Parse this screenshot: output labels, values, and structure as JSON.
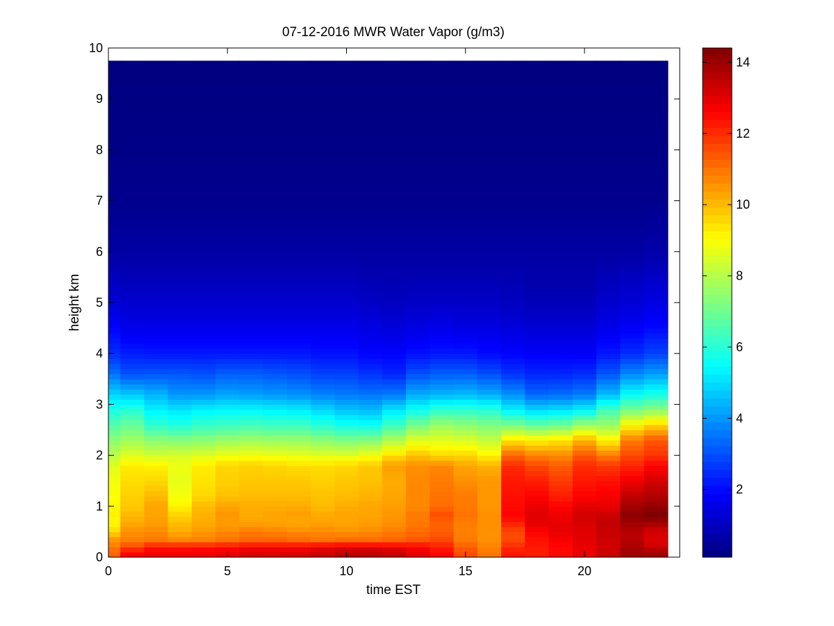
{
  "chart_data": {
    "type": "heatmap",
    "title": "07-12-2016 MWR Water Vapor (g/m3)",
    "xlabel": "time EST",
    "ylabel": "height km",
    "xlim": [
      0,
      24
    ],
    "ylim": [
      0,
      10
    ],
    "x_ticks": [
      0,
      5,
      10,
      15,
      20
    ],
    "y_ticks": [
      0,
      1,
      2,
      3,
      4,
      5,
      6,
      7,
      8,
      9,
      10
    ],
    "x_tick_labels": [
      "0",
      "5",
      "10",
      "15",
      "20"
    ],
    "y_tick_labels": [
      "0",
      "1",
      "2",
      "3",
      "4",
      "5",
      "6",
      "7",
      "8",
      "9",
      "10"
    ],
    "colormap": "jet",
    "color_range": [
      0.1,
      14.4
    ],
    "colorbar_ticks": [
      2,
      4,
      6,
      8,
      10,
      12,
      14
    ],
    "colorbar_tick_labels": [
      "2",
      "4",
      "6",
      "8",
      "10",
      "12",
      "14"
    ],
    "time_start": 0,
    "time_end": 23.5,
    "time_bin_width": 1,
    "height_top": 9.75,
    "profile_heights": [
      0,
      0.1,
      0.2,
      0.35,
      0.5,
      0.6,
      0.7,
      0.85,
      1.0,
      1.2,
      1.5,
      1.8,
      2.0,
      2.3,
      2.6,
      2.9,
      3.2,
      3.6,
      4.0,
      4.5,
      5.0,
      5.5,
      6.0,
      7.0,
      8.0,
      9.75
    ],
    "profiles": [
      {
        "time": 0,
        "values": [
          11.2,
          11.2,
          10.9,
          10.5,
          9.6,
          9.3,
          9.1,
          9.2,
          9.1,
          9.0,
          8.9,
          8.6,
          8.1,
          7.4,
          6.6,
          5.8,
          4.9,
          3.5,
          2.5,
          1.9,
          1.3,
          1.0,
          0.6,
          0.3,
          0.2,
          0.1
        ]
      },
      {
        "time": 1,
        "values": [
          12.6,
          12.5,
          11.6,
          10.8,
          10.6,
          10.4,
          10.2,
          10.0,
          9.8,
          9.7,
          9.5,
          9.3,
          8.6,
          7.7,
          6.9,
          6.0,
          4.7,
          3.0,
          2.3,
          1.6,
          1.2,
          0.9,
          0.6,
          0.3,
          0.2,
          0.1
        ]
      },
      {
        "time": 2,
        "values": [
          12.8,
          12.7,
          12.3,
          10.9,
          10.7,
          10.5,
          10.4,
          10.3,
          10.3,
          10.0,
          9.6,
          9.2,
          8.4,
          7.4,
          6.1,
          5.3,
          4.4,
          3.1,
          2.2,
          1.6,
          1.2,
          0.9,
          0.6,
          0.3,
          0.2,
          0.1
        ]
      },
      {
        "time": 3,
        "values": [
          12.8,
          12.7,
          12.3,
          10.7,
          10.2,
          10.1,
          9.9,
          9.6,
          9.2,
          8.9,
          8.7,
          8.8,
          8.5,
          7.3,
          5.9,
          5.1,
          4.0,
          3.1,
          2.2,
          1.6,
          1.2,
          0.9,
          0.6,
          0.3,
          0.2,
          0.1
        ]
      },
      {
        "time": 4,
        "values": [
          12.9,
          12.8,
          12.3,
          10.8,
          10.5,
          10.3,
          10.2,
          10.1,
          10.0,
          9.6,
          9.4,
          9.3,
          8.6,
          7.4,
          6.2,
          5.3,
          4.0,
          3.0,
          2.2,
          1.6,
          1.2,
          0.9,
          0.6,
          0.3,
          0.2,
          0.1
        ]
      },
      {
        "time": 5,
        "values": [
          13.0,
          12.9,
          12.4,
          11.0,
          10.7,
          10.5,
          10.4,
          10.5,
          10.3,
          9.9,
          9.7,
          9.6,
          8.8,
          7.6,
          6.3,
          5.4,
          4.2,
          3.2,
          2.2,
          1.6,
          1.2,
          0.9,
          0.6,
          0.3,
          0.2,
          0.1
        ]
      },
      {
        "time": 6,
        "values": [
          13.2,
          13.1,
          12.6,
          11.2,
          10.9,
          10.6,
          10.3,
          10.2,
          10.2,
          10.0,
          9.8,
          9.7,
          8.9,
          7.7,
          6.4,
          5.4,
          4.1,
          3.2,
          2.2,
          1.6,
          1.2,
          0.9,
          0.6,
          0.3,
          0.2,
          0.1
        ]
      },
      {
        "time": 7,
        "values": [
          13.2,
          13.1,
          12.6,
          11.2,
          10.8,
          10.5,
          10.3,
          10.3,
          10.2,
          10.0,
          9.8,
          9.6,
          8.8,
          7.6,
          6.3,
          5.3,
          4.0,
          3.1,
          2.2,
          1.6,
          1.2,
          0.9,
          0.6,
          0.3,
          0.2,
          0.1
        ]
      },
      {
        "time": 8,
        "values": [
          13.2,
          13.1,
          12.6,
          11.1,
          10.7,
          10.4,
          10.3,
          10.4,
          10.2,
          10.0,
          9.8,
          9.5,
          8.7,
          7.6,
          6.3,
          5.2,
          3.9,
          3.0,
          2.2,
          1.6,
          1.2,
          0.9,
          0.6,
          0.3,
          0.2,
          0.1
        ]
      },
      {
        "time": 9,
        "values": [
          13.4,
          13.3,
          12.8,
          11.0,
          10.7,
          10.5,
          10.3,
          10.2,
          10.0,
          9.9,
          9.7,
          9.5,
          8.6,
          7.4,
          6.0,
          4.9,
          3.7,
          2.8,
          2.1,
          1.6,
          1.2,
          0.9,
          0.6,
          0.3,
          0.2,
          0.1
        ]
      },
      {
        "time": 10,
        "values": [
          13.6,
          13.5,
          12.9,
          11.1,
          10.6,
          10.4,
          10.3,
          10.3,
          10.2,
          10.0,
          9.8,
          9.6,
          8.6,
          7.2,
          5.7,
          4.6,
          3.6,
          2.8,
          2.1,
          1.6,
          1.2,
          0.9,
          0.6,
          0.3,
          0.2,
          0.1
        ]
      },
      {
        "time": 11,
        "values": [
          13.6,
          13.5,
          12.9,
          11.1,
          10.7,
          10.5,
          10.4,
          10.3,
          10.3,
          10.1,
          9.9,
          9.8,
          8.9,
          7.3,
          5.6,
          4.5,
          3.5,
          2.6,
          1.9,
          1.5,
          1.1,
          0.8,
          0.6,
          0.3,
          0.2,
          0.1
        ]
      },
      {
        "time": 12,
        "values": [
          13.5,
          13.3,
          12.8,
          11.2,
          10.9,
          10.7,
          10.6,
          10.5,
          10.4,
          10.3,
          10.2,
          10.4,
          9.5,
          7.9,
          6.3,
          5.1,
          3.6,
          2.4,
          1.9,
          1.4,
          1.0,
          0.8,
          0.6,
          0.3,
          0.2,
          0.1
        ]
      },
      {
        "time": 13,
        "values": [
          13.0,
          12.9,
          12.6,
          11.4,
          11.1,
          11.0,
          10.9,
          10.9,
          10.7,
          10.7,
          10.7,
          10.6,
          9.9,
          8.6,
          7.1,
          5.6,
          4.3,
          3.0,
          2.1,
          1.5,
          1.1,
          0.8,
          0.6,
          0.3,
          0.2,
          0.1
        ]
      },
      {
        "time": 14,
        "values": [
          12.6,
          12.5,
          12.2,
          11.6,
          11.3,
          11.2,
          11.3,
          11.5,
          11.1,
          11.0,
          10.9,
          10.7,
          9.6,
          8.6,
          7.6,
          6.1,
          4.4,
          3.2,
          2.2,
          1.6,
          1.1,
          0.8,
          0.6,
          0.3,
          0.2,
          0.1
        ]
      },
      {
        "time": 15,
        "values": [
          11.6,
          11.5,
          11.3,
          10.9,
          10.8,
          10.8,
          10.9,
          11.0,
          10.9,
          10.9,
          10.6,
          10.3,
          9.6,
          8.5,
          7.4,
          6.1,
          4.5,
          3.2,
          2.2,
          1.5,
          1.1,
          0.8,
          0.6,
          0.3,
          0.2,
          0.1
        ]
      },
      {
        "time": 16,
        "values": [
          11.0,
          10.9,
          10.8,
          10.6,
          10.6,
          10.6,
          10.6,
          10.6,
          10.5,
          10.5,
          10.5,
          10.1,
          9.2,
          8.2,
          7.2,
          6.0,
          4.3,
          3.0,
          2.0,
          1.5,
          1.1,
          0.8,
          0.6,
          0.3,
          0.2,
          0.1
        ]
      },
      {
        "time": 17,
        "values": [
          12.3,
          12.3,
          12.0,
          11.6,
          11.6,
          11.9,
          12.3,
          12.6,
          12.5,
          12.4,
          12.3,
          12.0,
          11.2,
          9.4,
          7.1,
          5.3,
          3.9,
          2.6,
          1.9,
          1.4,
          1.0,
          0.8,
          0.6,
          0.3,
          0.2,
          0.1
        ]
      },
      {
        "time": 18,
        "values": [
          12.2,
          12.2,
          12.3,
          12.4,
          12.6,
          12.8,
          13.0,
          13.0,
          12.9,
          12.6,
          12.2,
          11.6,
          10.8,
          9.2,
          6.8,
          4.9,
          3.3,
          2.4,
          1.8,
          1.3,
          0.9,
          0.7,
          0.6,
          0.3,
          0.2,
          0.1
        ]
      },
      {
        "time": 19,
        "values": [
          12.5,
          12.5,
          12.5,
          12.7,
          12.9,
          13.0,
          12.9,
          12.8,
          12.6,
          12.2,
          11.8,
          11.3,
          10.7,
          9.4,
          7.0,
          5.0,
          3.4,
          2.4,
          1.8,
          1.3,
          0.9,
          0.7,
          0.6,
          0.3,
          0.2,
          0.1
        ]
      },
      {
        "time": 20,
        "values": [
          12.9,
          12.9,
          12.9,
          13.0,
          13.0,
          13.1,
          13.2,
          13.2,
          13.0,
          12.6,
          12.3,
          12.0,
          11.4,
          10.1,
          7.6,
          5.3,
          3.6,
          2.5,
          1.8,
          1.3,
          0.9,
          0.7,
          0.6,
          0.3,
          0.2,
          0.1
        ]
      },
      {
        "time": 21,
        "values": [
          13.4,
          13.3,
          13.3,
          13.3,
          13.4,
          13.4,
          13.5,
          13.3,
          12.9,
          12.7,
          12.4,
          11.8,
          10.9,
          9.2,
          7.6,
          6.4,
          4.5,
          3.1,
          2.2,
          1.6,
          1.2,
          0.9,
          0.6,
          0.3,
          0.2,
          0.1
        ]
      },
      {
        "time": 22,
        "values": [
          14.0,
          13.9,
          13.8,
          13.6,
          13.6,
          13.8,
          14.0,
          14.2,
          13.9,
          13.5,
          12.8,
          12.1,
          11.6,
          10.9,
          9.1,
          7.1,
          5.5,
          3.8,
          2.5,
          1.8,
          1.3,
          1.0,
          0.6,
          0.3,
          0.2,
          0.1
        ]
      },
      {
        "time": 23,
        "values": [
          14.0,
          13.9,
          13.3,
          13.1,
          13.2,
          13.5,
          14.1,
          14.4,
          14.1,
          13.7,
          13.2,
          12.6,
          11.9,
          11.4,
          9.6,
          7.4,
          5.8,
          4.1,
          2.8,
          2.0,
          1.5,
          1.1,
          0.7,
          0.3,
          0.2,
          0.1
        ]
      }
    ]
  }
}
